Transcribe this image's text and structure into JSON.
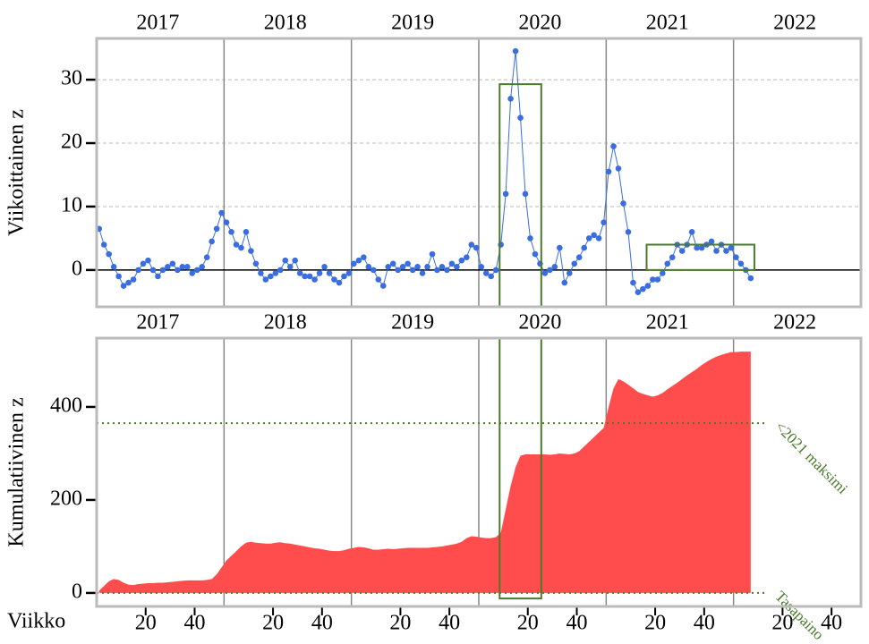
{
  "chart_data": [
    {
      "type": "line",
      "ylabel": "Viikoittainen z",
      "xlim": [
        0,
        312
      ],
      "ylim": [
        -5.8,
        36.5
      ],
      "yticks": [
        0,
        10,
        20,
        30
      ],
      "x2ticks": [
        {
          "value": 25,
          "label": "2017"
        },
        {
          "value": 77,
          "label": "2018"
        },
        {
          "value": 129,
          "label": "2019"
        },
        {
          "value": 181,
          "label": "2020"
        },
        {
          "value": 233,
          "label": "2021"
        },
        {
          "value": 285,
          "label": "2022"
        }
      ],
      "vlines": [
        52,
        104,
        156,
        208,
        260
      ],
      "axhline": 0,
      "grid": true,
      "x": [
        1,
        3,
        5,
        7,
        9,
        11,
        13,
        15,
        17,
        19,
        21,
        23,
        25,
        27,
        29,
        31,
        33,
        35,
        37,
        39,
        41,
        43,
        45,
        47,
        49,
        51,
        53,
        55,
        57,
        59,
        61,
        63,
        65,
        67,
        69,
        71,
        73,
        75,
        77,
        79,
        81,
        83,
        85,
        87,
        89,
        91,
        93,
        95,
        97,
        99,
        101,
        103,
        105,
        107,
        109,
        111,
        113,
        115,
        117,
        119,
        121,
        123,
        125,
        127,
        129,
        131,
        133,
        135,
        137,
        139,
        141,
        143,
        145,
        147,
        149,
        151,
        153,
        155,
        157,
        159,
        161,
        163,
        165,
        167,
        169,
        171,
        173,
        175,
        177,
        179,
        181,
        183,
        185,
        187,
        189,
        191,
        193,
        195,
        197,
        199,
        201,
        203,
        205,
        207,
        209,
        211,
        213,
        215,
        217,
        219,
        221,
        223,
        225,
        227,
        229,
        231,
        233,
        235,
        237,
        239,
        241,
        243,
        245,
        247,
        249,
        251,
        253,
        255,
        257,
        259,
        261,
        263,
        265,
        267
      ],
      "series": [
        {
          "color": "#3a6de0",
          "values": [
            6.5,
            4,
            2.5,
            0.5,
            -1,
            -2.5,
            -2,
            -1.5,
            0,
            1,
            1.5,
            0,
            -1,
            0,
            0.5,
            1,
            0,
            0.5,
            0.5,
            -0.5,
            0,
            0.5,
            2,
            4.5,
            6.5,
            9,
            7.5,
            6,
            4,
            3.5,
            6,
            3,
            1,
            -0.5,
            -1.5,
            -1,
            -0.5,
            0,
            1.5,
            0.5,
            1.5,
            -0.5,
            -1,
            -1,
            -1.5,
            -0.5,
            0.5,
            -0.5,
            -1.5,
            -2,
            -1,
            -0.5,
            1,
            1.5,
            2,
            0.5,
            0,
            -1.5,
            -2.5,
            0.5,
            1,
            0,
            0.5,
            1,
            0,
            0.5,
            -0.5,
            0.5,
            2.5,
            0,
            0.5,
            0,
            1,
            0.5,
            1.5,
            2,
            4,
            3.5,
            0.5,
            -0.5,
            -1,
            0,
            4,
            12,
            27,
            34.5,
            24,
            12,
            5,
            2.5,
            1,
            -0.5,
            0,
            0.5,
            3.5,
            -2,
            -0.5,
            1,
            2,
            3.5,
            5,
            5.5,
            5,
            7.5,
            15.5,
            19.5,
            16,
            10.5,
            6,
            -2,
            -3.5,
            -3,
            -2.5,
            -1.5,
            -1.5,
            -0.5,
            1,
            2,
            4,
            3,
            4,
            6,
            3.5,
            3.5,
            4,
            4.5,
            3,
            4,
            3,
            3.5,
            2,
            1,
            0,
            -1.3
          ]
        }
      ],
      "highlights": [
        {
          "x": [
            164.5,
            181.5
          ],
          "y": [
            -5.8,
            29.3
          ]
        },
        {
          "x": [
            224.5,
            268.5
          ],
          "y": [
            0,
            4
          ]
        }
      ],
      "highlight_color": "#4a7a2a"
    },
    {
      "type": "area",
      "ylabel": "Kumulatiivinen z",
      "xlabel": "Viikko",
      "xlim": [
        0,
        312
      ],
      "ylim": [
        -29,
        548
      ],
      "yticks": [
        0,
        200,
        400
      ],
      "xticks": [
        {
          "value": 20,
          "label": "20"
        },
        {
          "value": 40,
          "label": "40"
        },
        {
          "value": 72,
          "label": "20"
        },
        {
          "value": 92,
          "label": "40"
        },
        {
          "value": 124,
          "label": "20"
        },
        {
          "value": 144,
          "label": "40"
        },
        {
          "value": 176,
          "label": "20"
        },
        {
          "value": 196,
          "label": "40"
        },
        {
          "value": 228,
          "label": "20"
        },
        {
          "value": 248,
          "label": "40"
        },
        {
          "value": 280,
          "label": "20"
        },
        {
          "value": 300,
          "label": "40"
        }
      ],
      "x2ticks": [
        {
          "value": 25,
          "label": "2017"
        },
        {
          "value": 77,
          "label": "2018"
        },
        {
          "value": 129,
          "label": "2019"
        },
        {
          "value": 181,
          "label": "2020"
        },
        {
          "value": 233,
          "label": "2021"
        },
        {
          "value": 285,
          "label": "2022"
        }
      ],
      "vlines": [
        52,
        104,
        156,
        208,
        260
      ],
      "x": [
        1,
        3,
        5,
        7,
        9,
        11,
        13,
        15,
        17,
        19,
        21,
        23,
        25,
        27,
        29,
        31,
        33,
        35,
        37,
        39,
        41,
        43,
        45,
        47,
        49,
        51,
        53,
        55,
        57,
        59,
        61,
        63,
        65,
        67,
        69,
        71,
        73,
        75,
        77,
        79,
        81,
        83,
        85,
        87,
        89,
        91,
        93,
        95,
        97,
        99,
        101,
        103,
        105,
        107,
        109,
        111,
        113,
        115,
        117,
        119,
        121,
        123,
        125,
        127,
        129,
        131,
        133,
        135,
        137,
        139,
        141,
        143,
        145,
        147,
        149,
        151,
        153,
        155,
        157,
        159,
        161,
        163,
        165,
        167,
        169,
        171,
        173,
        175,
        177,
        179,
        181,
        183,
        185,
        187,
        189,
        191,
        193,
        195,
        197,
        199,
        201,
        203,
        205,
        207,
        209,
        211,
        213,
        215,
        217,
        219,
        221,
        223,
        225,
        227,
        229,
        231,
        233,
        235,
        237,
        239,
        241,
        243,
        245,
        247,
        249,
        251,
        253,
        255,
        257,
        259,
        261,
        263,
        265,
        267
      ],
      "series": [
        {
          "color": "#ff4d4d",
          "values": [
            5,
            15,
            25,
            30,
            28,
            22,
            18,
            17,
            19,
            20,
            21,
            21,
            22,
            22,
            23,
            24,
            25,
            26,
            27,
            27,
            27,
            27,
            28,
            30,
            40,
            55,
            70,
            80,
            90,
            100,
            108,
            110,
            108,
            107,
            106,
            106,
            108,
            109,
            107,
            106,
            104,
            102,
            100,
            98,
            96,
            95,
            93,
            91,
            90,
            90,
            92,
            95,
            97,
            99,
            98,
            96,
            93,
            93,
            94,
            95,
            94,
            95,
            96,
            97,
            97,
            97,
            97,
            97,
            98,
            99,
            100,
            102,
            104,
            106,
            110,
            118,
            122,
            121,
            119,
            118,
            118,
            120,
            130,
            180,
            230,
            270,
            295,
            298,
            298,
            298,
            298,
            298,
            297,
            298,
            300,
            299,
            298,
            300,
            305,
            315,
            325,
            335,
            345,
            355,
            400,
            440,
            460,
            455,
            448,
            440,
            432,
            428,
            425,
            422,
            425,
            430,
            438,
            445,
            452,
            460,
            468,
            475,
            482,
            490,
            497,
            503,
            508,
            512,
            515,
            518,
            518,
            519,
            519,
            519
          ]
        }
      ],
      "hlines": [
        {
          "value": 365,
          "label": "<2021 maksimi"
        },
        {
          "value": 0,
          "label": "Tasapaino"
        }
      ],
      "hline_color": "#4a7a2a",
      "highlights": [
        {
          "x": [
            164.5,
            181.5
          ],
          "y": [
            -12,
            548
          ]
        }
      ],
      "highlight_color": "#4a7a2a"
    }
  ]
}
